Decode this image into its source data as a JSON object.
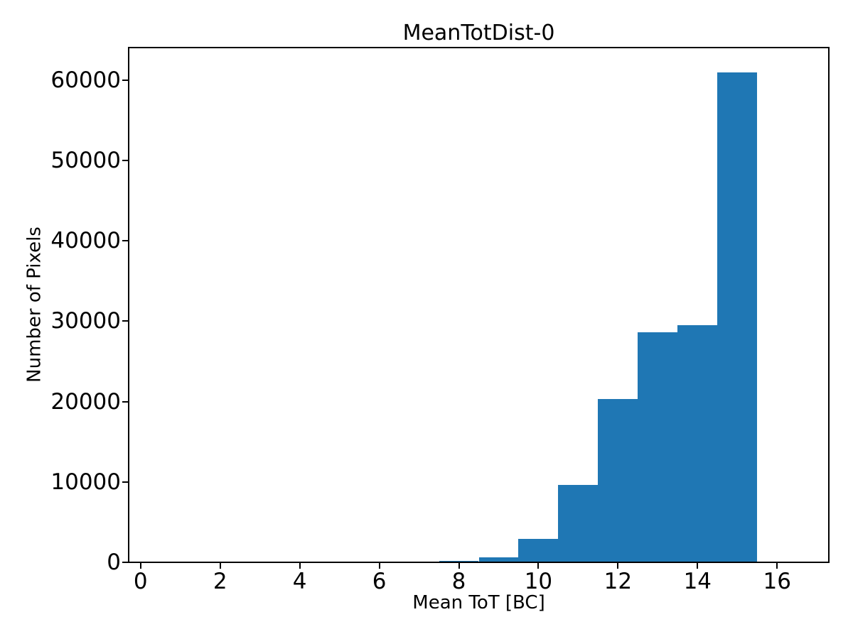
{
  "chart_data": {
    "type": "bar",
    "subtype": "histogram",
    "title": "MeanTotDist-0",
    "xlabel": "Mean ToT [BC]",
    "ylabel": "Number of Pixels",
    "bar_color": "#1f77b4",
    "text_color": "#000000",
    "background_color": "#ffffff",
    "grid": false,
    "legend": null,
    "bin_edges": [
      0.5,
      1.5,
      2.5,
      3.5,
      4.5,
      5.5,
      6.5,
      7.5,
      8.5,
      9.5,
      10.5,
      11.5,
      12.5,
      13.5,
      14.5,
      15.5,
      16.5
    ],
    "bin_centers": [
      1,
      2,
      3,
      4,
      5,
      6,
      7,
      8,
      9,
      10,
      11,
      12,
      13,
      14,
      15,
      16
    ],
    "counts": [
      0,
      0,
      0,
      0,
      0,
      0,
      0,
      150,
      600,
      2900,
      9600,
      20300,
      28600,
      29500,
      61000,
      0
    ],
    "xlim": [
      -0.3,
      17.3
    ],
    "ylim": [
      0,
      64050
    ],
    "xticks": [
      0,
      2,
      4,
      6,
      8,
      10,
      12,
      14,
      16
    ],
    "yticks": [
      0,
      10000,
      20000,
      30000,
      40000,
      50000,
      60000
    ]
  }
}
